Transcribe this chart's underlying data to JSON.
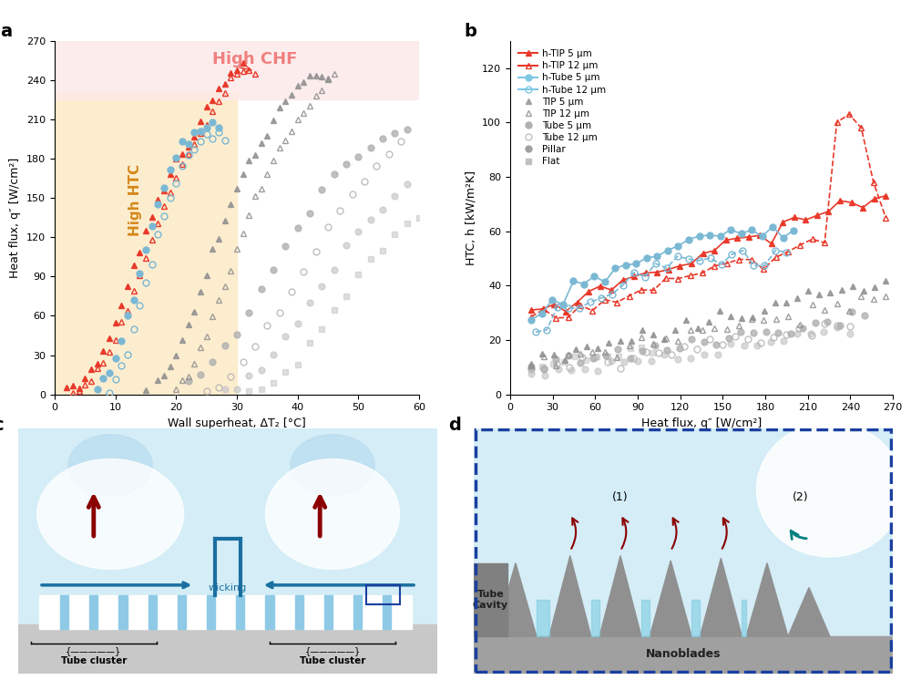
{
  "panel_a": {
    "title": "High CHF",
    "title_color": "#f08080",
    "htc_label": "High HTC",
    "htc_color": "#f5a623",
    "htc_bg": "#fde9c4",
    "chf_bg": "#fce4e4",
    "xlabel": "Wall superheat, ΔT₂ [°C]",
    "ylabel": "Heat flux, q″ [W/cm²]",
    "xlim": [
      0,
      60
    ],
    "ylim": [
      0,
      270
    ],
    "xticks": [
      0,
      10,
      20,
      30,
      40,
      50,
      60
    ],
    "yticks": [
      0,
      30,
      60,
      90,
      120,
      150,
      180,
      210,
      240,
      270
    ],
    "htc_region": [
      0,
      30,
      0,
      230
    ],
    "chf_region": [
      0,
      60,
      230,
      270
    ]
  },
  "panel_b": {
    "xlabel": "Heat flux, q″ [W/cm²]",
    "ylabel": "HTC, h [kW/m²K]",
    "xlim": [
      0,
      270
    ],
    "ylim": [
      0,
      130
    ],
    "xticks": [
      0,
      30,
      60,
      90,
      120,
      150,
      180,
      210,
      240,
      270
    ],
    "yticks": [
      0,
      20,
      40,
      60,
      80,
      100,
      120
    ]
  },
  "colors": {
    "red_filled": "#e8392a",
    "red_open": "#e8392a",
    "blue_filled": "#7ec8e3",
    "blue_open": "#7ec8e3",
    "gray_tri_filled": "#a0a0a0",
    "gray_tri_open": "#a0a0a0",
    "gray_circ_filled": "#b0b0b0",
    "gray_circ_open": "#c0c0c0",
    "gray_pillar": "#a0a0a0",
    "gray_flat": "#c0c0c0"
  },
  "legend_b": [
    {
      "label": "h-TIP 5 μm",
      "color": "#e8392a",
      "marker": "^",
      "filled": true,
      "lw": 1.5
    },
    {
      "label": "h-TIP 12 μm",
      "color": "#e8392a",
      "marker": "^",
      "filled": false,
      "lw": 1.5
    },
    {
      "label": "h-Tube 5 μm",
      "color": "#7ec8e3",
      "marker": "o",
      "filled": true,
      "lw": 1.5
    },
    {
      "label": "h-Tube 12 μm",
      "color": "#7ec8e3",
      "marker": "o",
      "filled": false,
      "lw": 1.5
    },
    {
      "label": "TIP 5 μm",
      "color": "#a0a0a0",
      "marker": "^",
      "filled": true,
      "lw": 0
    },
    {
      "label": "TIP 12 μm",
      "color": "#a0a0a0",
      "marker": "^",
      "filled": false,
      "lw": 0
    },
    {
      "label": "Tube 5 μm",
      "color": "#b0b0b0",
      "marker": "o",
      "filled": true,
      "lw": 0
    },
    {
      "label": "Tube 12 μm",
      "color": "#c0c0c0",
      "marker": "o",
      "filled": false,
      "lw": 0
    },
    {
      "label": "Pillar",
      "color": "#a0a0a0",
      "marker": "o",
      "filled": true,
      "lw": 0
    },
    {
      "label": "Flat",
      "color": "#c0c0c0",
      "marker": "s",
      "filled": true,
      "lw": 0
    }
  ]
}
